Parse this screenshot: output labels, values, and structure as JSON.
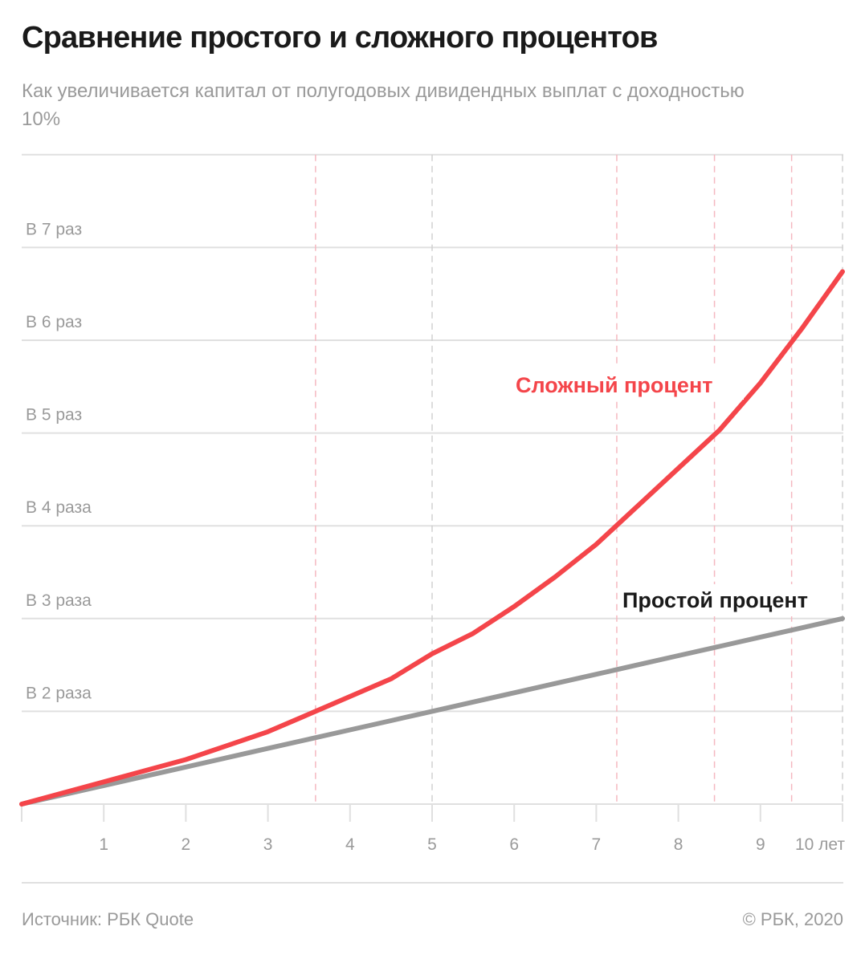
{
  "header": {
    "title": "Сравнение простого и сложного процентов",
    "subtitle": "Как увеличивается капитал от полугодовых дивидендных выплат с доходностью 10%"
  },
  "footer": {
    "source": "Источник: РБК Quote",
    "copyright": "© РБК, 2020"
  },
  "colors": {
    "compound": "#f4454a",
    "simple": "#999999",
    "grid": "#e0e0e0",
    "marker_compound": "#f5b8c0",
    "marker_simple": "#d0d0d0"
  },
  "chart_data": {
    "type": "line",
    "title": "Сравнение простого и сложного процентов",
    "subtitle": "Как увеличивается капитал от полугодовых дивидендных выплат с доходностью 10%",
    "xlabel": "",
    "ylabel": "",
    "x_tick_labels": [
      "1",
      "2",
      "3",
      "4",
      "5",
      "6",
      "7",
      "8",
      "9",
      "10 лет"
    ],
    "y_tick_labels": [
      "В 2 раза",
      "В 3 раза",
      "В 4 раза",
      "В 5 раз",
      "В 6 раз",
      "В 7 раз"
    ],
    "y_tick_values": [
      2,
      3,
      4,
      5,
      6,
      7
    ],
    "xlim": [
      0,
      10
    ],
    "ylim": [
      1,
      8
    ],
    "grid": true,
    "x": [
      0,
      0.5,
      1,
      1.5,
      2,
      2.5,
      3,
      3.5,
      4,
      4.5,
      5,
      5.5,
      6,
      6.5,
      7,
      7.5,
      8,
      8.5,
      9,
      9.5,
      10
    ],
    "series": [
      {
        "name": "Сложный процент",
        "color": "#f4454a",
        "values": [
          1.0,
          1.12,
          1.24,
          1.36,
          1.48,
          1.63,
          1.78,
          1.97,
          2.16,
          2.35,
          2.62,
          2.84,
          3.13,
          3.45,
          3.8,
          4.21,
          4.62,
          5.03,
          5.54,
          6.12,
          6.74
        ]
      },
      {
        "name": "Простой процент",
        "color": "#999999",
        "values": [
          1.0,
          1.1,
          1.2,
          1.3,
          1.4,
          1.5,
          1.6,
          1.7,
          1.8,
          1.9,
          2.0,
          2.1,
          2.2,
          2.3,
          2.4,
          2.5,
          2.6,
          2.7,
          2.8,
          2.9,
          3.0
        ]
      }
    ],
    "annotations": [
      {
        "text": "Сложный процент",
        "color": "#f4454a"
      },
      {
        "text": "Простой процент",
        "color": "#1a1a1a"
      }
    ],
    "reference_lines_x": {
      "compound_multiples": [
        3.58,
        7.25,
        8.44,
        9.38
      ],
      "simple_multiples": [
        5,
        10
      ]
    }
  }
}
